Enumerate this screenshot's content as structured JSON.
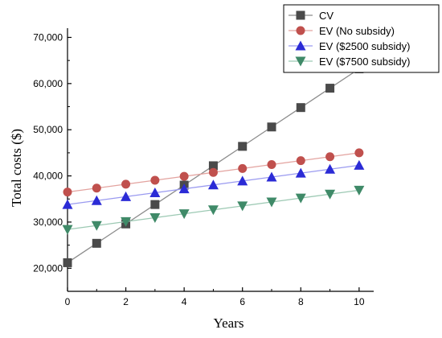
{
  "chart_data": {
    "type": "line",
    "title": "",
    "xlabel": "Years",
    "ylabel": "Total costs ($)",
    "xlim": [
      0,
      10.5
    ],
    "ylim": [
      15000,
      72000
    ],
    "x": [
      0,
      1,
      2,
      3,
      4,
      5,
      6,
      7,
      8,
      9,
      10
    ],
    "x_ticks": [
      0,
      2,
      4,
      6,
      8,
      10
    ],
    "x_tick_labels": [
      "0",
      "2",
      "4",
      "6",
      "8",
      "10"
    ],
    "y_ticks": [
      20000,
      30000,
      40000,
      50000,
      60000,
      70000
    ],
    "y_tick_labels": [
      "20,000",
      "30,000",
      "40,000",
      "50,000",
      "60,000",
      "70,000"
    ],
    "grid": false,
    "legend_position": "top-right",
    "series": [
      {
        "name": "CV",
        "color": "#4a4a4a",
        "line_color": "#8c8c8c",
        "marker": "square",
        "values": [
          21200,
          25400,
          29600,
          33800,
          38000,
          42200,
          46400,
          50600,
          54800,
          59000,
          63200
        ]
      },
      {
        "name": "EV (No subsidy)",
        "color": "#c0504d",
        "line_color": "#e3a39f",
        "marker": "circle",
        "values": [
          36500,
          37350,
          38200,
          39050,
          39900,
          40750,
          41600,
          42450,
          43300,
          44150,
          45000
        ]
      },
      {
        "name": "EV ($2500 subsidy)",
        "color": "#2b2bd6",
        "line_color": "#9a9af0",
        "marker": "triangle-up",
        "values": [
          33800,
          34650,
          35500,
          36350,
          37200,
          38050,
          38900,
          39750,
          40600,
          41450,
          42300
        ]
      },
      {
        "name": "EV ($7500 subsidy)",
        "color": "#3f8a68",
        "line_color": "#9cc9b3",
        "marker": "triangle-down",
        "values": [
          28400,
          29250,
          30100,
          30950,
          31800,
          32650,
          33500,
          34350,
          35200,
          36050,
          36900
        ]
      }
    ]
  }
}
